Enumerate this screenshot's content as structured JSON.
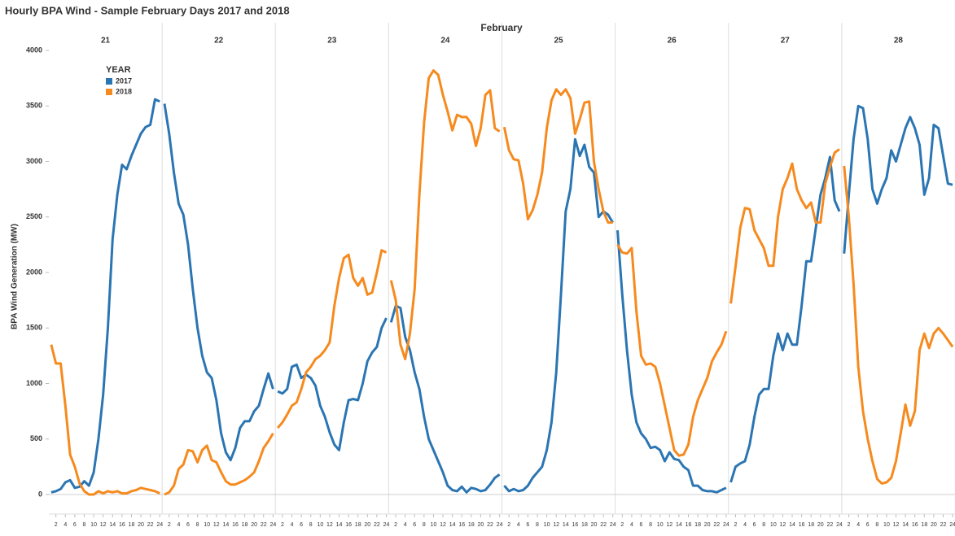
{
  "chart_data": {
    "type": "line",
    "title": "Hourly BPA Wind - Sample February Days 2017 and 2018",
    "group_label": "February",
    "groups": [
      "21",
      "22",
      "23",
      "24",
      "25",
      "26",
      "27",
      "28"
    ],
    "x": [
      1,
      2,
      3,
      4,
      5,
      6,
      7,
      8,
      9,
      10,
      11,
      12,
      13,
      14,
      15,
      16,
      17,
      18,
      19,
      20,
      21,
      22,
      23,
      24
    ],
    "xticks": [
      2,
      4,
      6,
      8,
      10,
      12,
      14,
      16,
      18,
      20,
      22,
      24
    ],
    "xlim": [
      0.5,
      24.5
    ],
    "ylabel": "BPA Wind Generation (MW)",
    "ylim": [
      -170,
      4000
    ],
    "yticks": [
      0,
      500,
      1000,
      1500,
      2000,
      2500,
      3000,
      3500,
      4000
    ],
    "legend_title": "YEAR",
    "legend": "upper left",
    "series": [
      {
        "name": "2017",
        "color": "#2b75b3",
        "values": [
          [
            20,
            30,
            50,
            110,
            130,
            60,
            70,
            120,
            80,
            200,
            500,
            900,
            1500,
            2300,
            2700,
            2970,
            2930,
            3050,
            3150,
            3250,
            3310,
            3330,
            3560,
            3540
          ],
          [
            3520,
            3250,
            2900,
            2620,
            2520,
            2250,
            1850,
            1500,
            1250,
            1100,
            1050,
            850,
            550,
            380,
            310,
            420,
            600,
            660,
            660,
            750,
            800,
            950,
            1090,
            950
          ],
          [
            930,
            910,
            950,
            1150,
            1170,
            1050,
            1080,
            1050,
            980,
            800,
            700,
            560,
            450,
            400,
            650,
            850,
            860,
            850,
            1000,
            1200,
            1280,
            1330,
            1500,
            1590
          ],
          [
            1550,
            1700,
            1680,
            1420,
            1300,
            1100,
            950,
            700,
            500,
            400,
            300,
            200,
            80,
            40,
            30,
            70,
            20,
            60,
            50,
            30,
            40,
            90,
            150,
            180
          ],
          [
            80,
            30,
            50,
            30,
            40,
            80,
            150,
            200,
            250,
            400,
            650,
            1100,
            1800,
            2550,
            2750,
            3200,
            3050,
            3150,
            2950,
            2900,
            2500,
            2550,
            2520,
            2450
          ],
          [
            2380,
            1800,
            1300,
            900,
            650,
            550,
            500,
            420,
            430,
            400,
            300,
            380,
            320,
            310,
            250,
            220,
            80,
            80,
            40,
            30,
            30,
            20,
            40,
            60
          ],
          [
            110,
            250,
            280,
            300,
            450,
            700,
            900,
            950,
            950,
            1250,
            1450,
            1300,
            1450,
            1350,
            1350,
            1700,
            2100,
            2100,
            2400,
            2700,
            2850,
            3040,
            2650,
            2550
          ],
          [
            2170,
            2700,
            3200,
            3500,
            3480,
            3200,
            2750,
            2620,
            2750,
            2850,
            3100,
            3000,
            3150,
            3300,
            3400,
            3300,
            3150,
            2700,
            2850,
            3330,
            3300,
            3050,
            2800,
            2790
          ]
        ]
      },
      {
        "name": "2018",
        "color": "#f68a1e",
        "values": [
          [
            1350,
            1180,
            1180,
            800,
            360,
            250,
            100,
            30,
            0,
            0,
            30,
            10,
            30,
            20,
            30,
            10,
            10,
            30,
            40,
            60,
            50,
            40,
            30,
            10
          ],
          [
            0,
            20,
            80,
            230,
            270,
            400,
            390,
            290,
            400,
            440,
            310,
            290,
            200,
            120,
            90,
            90,
            110,
            130,
            160,
            200,
            300,
            420,
            480,
            550
          ],
          [
            600,
            650,
            720,
            800,
            830,
            950,
            1100,
            1150,
            1220,
            1250,
            1300,
            1370,
            1700,
            1950,
            2130,
            2160,
            1950,
            1880,
            1950,
            1800,
            1820,
            2000,
            2200,
            2180
          ],
          [
            1930,
            1750,
            1350,
            1220,
            1450,
            1850,
            2700,
            3350,
            3750,
            3820,
            3780,
            3600,
            3450,
            3280,
            3420,
            3400,
            3400,
            3340,
            3140,
            3300,
            3600,
            3640,
            3300,
            3270
          ],
          [
            3310,
            3100,
            3020,
            3010,
            2800,
            2480,
            2560,
            2700,
            2900,
            3300,
            3550,
            3650,
            3600,
            3650,
            3570,
            3250,
            3380,
            3530,
            3540,
            3000,
            2750,
            2550,
            2450,
            2450
          ],
          [
            2250,
            2180,
            2170,
            2220,
            1650,
            1250,
            1170,
            1180,
            1150,
            1000,
            800,
            600,
            400,
            350,
            360,
            450,
            700,
            850,
            950,
            1050,
            1200,
            1280,
            1350,
            1470
          ],
          [
            1720,
            2050,
            2400,
            2580,
            2570,
            2380,
            2300,
            2220,
            2060,
            2060,
            2500,
            2750,
            2850,
            2980,
            2750,
            2650,
            2580,
            2630,
            2450,
            2450,
            2800,
            2950,
            3080,
            3110
          ],
          [
            2960,
            2500,
            1900,
            1150,
            750,
            500,
            300,
            140,
            100,
            110,
            150,
            300,
            550,
            810,
            620,
            750,
            1300,
            1450,
            1320,
            1450,
            1500,
            1450,
            1390,
            1330
          ]
        ]
      }
    ]
  }
}
